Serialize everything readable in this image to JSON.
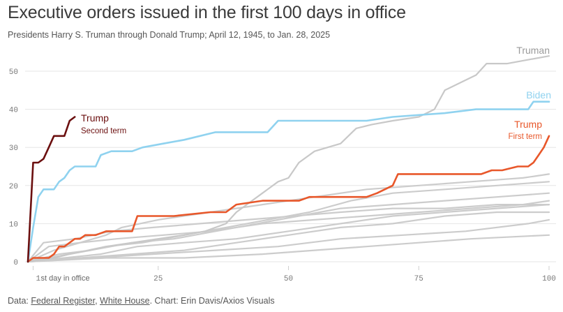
{
  "title": "Executive orders issued in the first 100 days in office",
  "subtitle": "Presidents Harry S. Truman through Donald Trump; April 12, 1945, to Jan. 28, 2025",
  "source": {
    "prefix": "Data: ",
    "link1": "Federal Register",
    "sep": ", ",
    "link2": "White House",
    "suffix": ". Chart: Erin Davis/Axios Visuals"
  },
  "colors": {
    "trump_second": "#6b0f0f",
    "trump_first": "#e8572a",
    "biden": "#8fd2ef",
    "truman": "#c8c8c8",
    "other": "#cccccc",
    "axis_text": "#777777"
  },
  "chart_data": {
    "type": "line",
    "xlim": [
      0,
      100
    ],
    "ylim": [
      0,
      55
    ],
    "x_ticks": [
      1,
      25,
      50,
      75,
      100
    ],
    "x_tick_labels": [
      "1",
      "25",
      "50",
      "75",
      "100"
    ],
    "x_first_tick_note": "st day in office",
    "y_ticks": [
      0,
      10,
      20,
      30,
      40,
      50
    ],
    "y_tick_labels": [
      "0",
      "10",
      "20",
      "30",
      "40",
      "50"
    ],
    "grid": "horizontal",
    "annotations": {
      "trump_second": {
        "line1": "Trump",
        "line2": "Second term"
      },
      "trump_first": {
        "line1": "Trump",
        "line2": "First term"
      },
      "biden": "Biden",
      "truman": "Truman"
    },
    "series": [
      {
        "key": "trump_second",
        "x": [
          0,
          1,
          2,
          3,
          4,
          5,
          6,
          7,
          8,
          9
        ],
        "y": [
          0,
          26,
          26,
          27,
          30,
          33,
          33,
          33,
          37,
          38
        ]
      },
      {
        "key": "biden",
        "x": [
          0,
          1,
          2,
          3,
          4,
          5,
          6,
          7,
          8,
          9,
          10,
          13,
          14,
          16,
          20,
          22,
          26,
          30,
          36,
          46,
          48,
          55,
          65,
          70,
          80,
          86,
          96,
          97,
          100
        ],
        "y": [
          0,
          9,
          17,
          19,
          19,
          19,
          21,
          22,
          24,
          25,
          25,
          25,
          28,
          29,
          29,
          30,
          31,
          32,
          34,
          34,
          37,
          37,
          37,
          38,
          39,
          40,
          40,
          42,
          42
        ]
      },
      {
        "key": "trump_first",
        "x": [
          0,
          1,
          2,
          4,
          5,
          6,
          7,
          8,
          9,
          10,
          11,
          13,
          15,
          20,
          21,
          28,
          35,
          38,
          40,
          45,
          52,
          54,
          65,
          67,
          70,
          71,
          78,
          87,
          89,
          91,
          94,
          96,
          97,
          98,
          99,
          100
        ],
        "y": [
          0,
          1,
          1,
          1,
          2,
          4,
          4,
          5,
          6,
          6,
          7,
          7,
          8,
          8,
          12,
          12,
          13,
          13,
          15,
          16,
          16,
          17,
          17,
          18,
          20,
          23,
          23,
          23,
          24,
          24,
          25,
          25,
          26,
          28,
          30,
          33
        ]
      },
      {
        "key": "truman",
        "x": [
          0,
          5,
          8,
          12,
          15,
          20,
          25,
          30,
          34,
          38,
          40,
          42,
          45,
          48,
          50,
          52,
          55,
          60,
          63,
          66,
          70,
          75,
          78,
          80,
          83,
          86,
          88,
          92,
          96,
          100
        ],
        "y": [
          0,
          1,
          2,
          3,
          4,
          5,
          6,
          7,
          8,
          10,
          13,
          15,
          18,
          21,
          22,
          26,
          29,
          31,
          35,
          36,
          37,
          38,
          40,
          45,
          47,
          49,
          52,
          52,
          53,
          54
        ]
      },
      {
        "key": "other",
        "x": [
          0,
          5,
          10,
          15,
          18,
          25,
          35,
          45,
          55,
          65,
          75,
          85,
          95,
          100
        ],
        "y": [
          0,
          3,
          5,
          7,
          9,
          11,
          13,
          15,
          17,
          19,
          20,
          21,
          22,
          23
        ]
      },
      {
        "key": "other",
        "x": [
          0,
          8,
          15,
          22,
          30,
          38,
          46,
          54,
          62,
          70,
          80,
          90,
          100
        ],
        "y": [
          0,
          2,
          4,
          5,
          7,
          9,
          11,
          13,
          16,
          18,
          19,
          20,
          21
        ]
      },
      {
        "key": "other",
        "x": [
          0,
          6,
          12,
          20,
          28,
          36,
          44,
          52,
          60,
          70,
          80,
          90,
          100
        ],
        "y": [
          0,
          2,
          3,
          5,
          6,
          8,
          10,
          12,
          14,
          15,
          16,
          17,
          18
        ]
      },
      {
        "key": "other",
        "x": [
          0,
          4,
          10,
          17,
          26,
          35,
          45,
          55,
          65,
          75,
          85,
          95,
          100
        ],
        "y": [
          0,
          4,
          5,
          6,
          7,
          8,
          10,
          11,
          12,
          13,
          14,
          15,
          16
        ]
      },
      {
        "key": "other",
        "x": [
          0,
          7,
          14,
          21,
          30,
          40,
          50,
          60,
          70,
          80,
          90,
          100
        ],
        "y": [
          0,
          1,
          2,
          4,
          5,
          6,
          8,
          10,
          12,
          13,
          14,
          15
        ]
      },
      {
        "key": "other",
        "x": [
          0,
          10,
          20,
          30,
          40,
          50,
          60,
          70,
          80,
          90,
          100
        ],
        "y": [
          0,
          1,
          2,
          3,
          5,
          7,
          9,
          10,
          12,
          13,
          13
        ]
      },
      {
        "key": "other",
        "x": [
          0,
          12,
          24,
          36,
          48,
          60,
          72,
          84,
          96,
          100
        ],
        "y": [
          0,
          1,
          2,
          3,
          4,
          6,
          7,
          8,
          10,
          11
        ]
      },
      {
        "key": "other",
        "x": [
          0,
          15,
          30,
          45,
          55,
          65,
          75,
          85,
          100
        ],
        "y": [
          0,
          1,
          1,
          2,
          3,
          4,
          5,
          6,
          7
        ]
      },
      {
        "key": "other",
        "x": [
          0,
          3,
          9,
          16,
          24,
          33,
          42,
          51,
          60,
          70,
          80,
          90,
          100
        ],
        "y": [
          0,
          5,
          6,
          8,
          9,
          10,
          11,
          12,
          13,
          14,
          14,
          15,
          15
        ]
      }
    ]
  }
}
